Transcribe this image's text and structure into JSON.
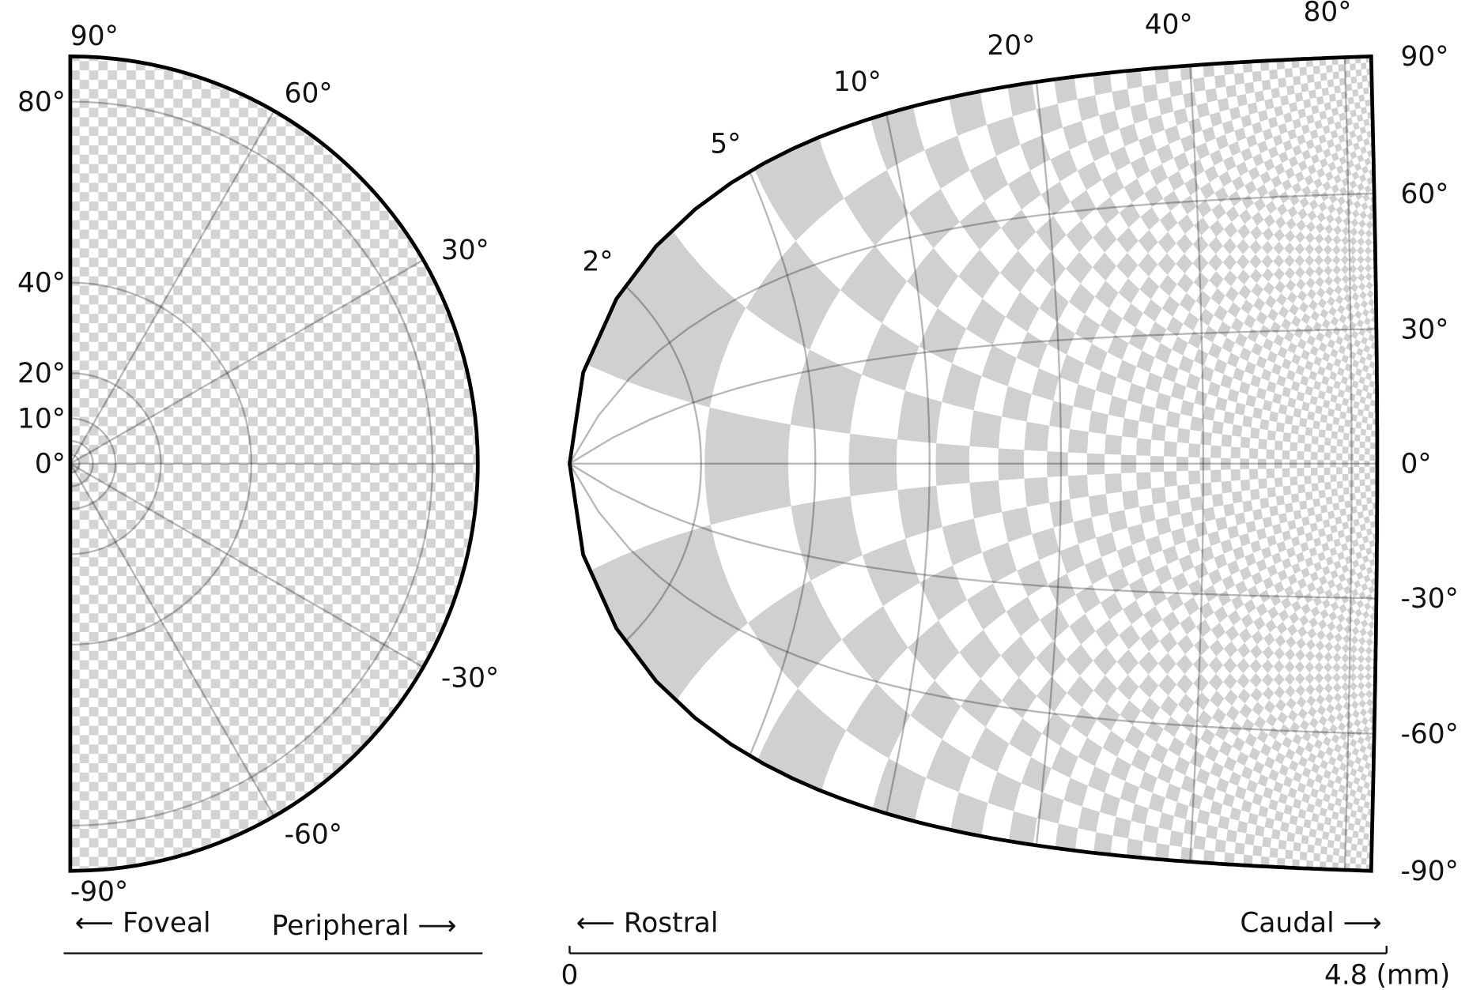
{
  "visual_field": {
    "eccentricity_labels": [
      {
        "value": 90,
        "label": "90°"
      },
      {
        "value": 80,
        "label": "80°"
      },
      {
        "value": 40,
        "label": "40°"
      },
      {
        "value": 20,
        "label": "20°"
      },
      {
        "value": 10,
        "label": "10°"
      },
      {
        "value": 0,
        "label": "0°"
      }
    ],
    "angle_labels": [
      {
        "value": 60,
        "label": "60°"
      },
      {
        "value": 30,
        "label": "30°"
      },
      {
        "value": -30,
        "label": "-30°"
      },
      {
        "value": -60,
        "label": "-60°"
      },
      {
        "value": -90,
        "label": "-90°"
      }
    ],
    "foveal": "⟵ Foveal",
    "peripheral": "Peripheral ⟶"
  },
  "cortex": {
    "eccentricity_labels": [
      {
        "value": 2,
        "label": "2°"
      },
      {
        "value": 5,
        "label": "5°"
      },
      {
        "value": 10,
        "label": "10°"
      },
      {
        "value": 20,
        "label": "20°"
      },
      {
        "value": 40,
        "label": "40°"
      },
      {
        "value": 80,
        "label": "80°"
      }
    ],
    "angle_labels": [
      {
        "value": 90,
        "label": "90°"
      },
      {
        "value": 60,
        "label": "60°"
      },
      {
        "value": 30,
        "label": "30°"
      },
      {
        "value": 0,
        "label": "0°"
      },
      {
        "value": -30,
        "label": "-30°"
      },
      {
        "value": -60,
        "label": "-60°"
      },
      {
        "value": -90,
        "label": "-90°"
      }
    ],
    "rostral": "⟵ Rostral",
    "caudal": "Caudal ⟶",
    "scale": {
      "lim": [
        0,
        4.8
      ],
      "ticks": [
        0,
        {
          "value": 4.8,
          "label": "4.8 (mm)"
        }
      ]
    }
  }
}
